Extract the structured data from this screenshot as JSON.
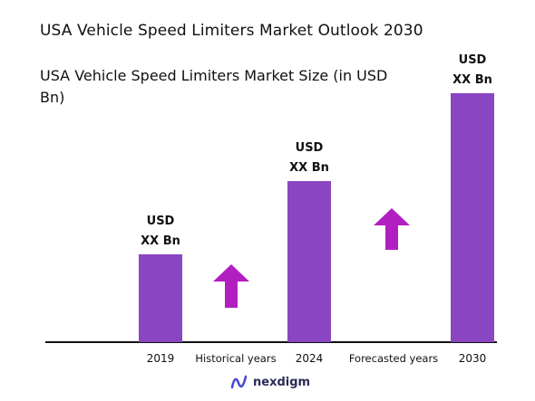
{
  "chart_data": {
    "type": "bar",
    "title": "USA Vehicle Speed Limiters Market Outlook 2030",
    "subtitle": "USA Vehicle Speed Limiters Market Size (in USD Bn)",
    "categories": [
      "2019",
      "2024",
      "2030"
    ],
    "values": [
      1.2,
      2.2,
      3.4
    ],
    "data_labels": [
      {
        "line1": "USD",
        "line2": "XX Bn"
      },
      {
        "line1": "USD",
        "line2": "XX Bn"
      },
      {
        "line1": "USD",
        "line2": "XX Bn"
      }
    ],
    "period_labels": [
      "Historical years",
      "Forecasted years"
    ],
    "ylim": [
      0,
      3.4
    ],
    "grid": false,
    "bar_color": "#8a45c2",
    "arrow_color": "#b21fc1"
  },
  "brand": {
    "name": "nexdigm",
    "color": "#2b2b55",
    "mark_color": "#4b4bd0"
  }
}
